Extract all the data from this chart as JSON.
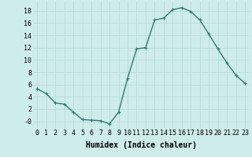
{
  "x": [
    0,
    1,
    2,
    3,
    4,
    5,
    6,
    7,
    8,
    9,
    10,
    11,
    12,
    13,
    14,
    15,
    16,
    17,
    18,
    19,
    20,
    21,
    22,
    23
  ],
  "y": [
    5.3,
    4.5,
    3.0,
    2.8,
    1.5,
    0.3,
    0.2,
    0.1,
    -0.4,
    1.5,
    7.0,
    11.8,
    12.0,
    16.5,
    16.8,
    18.2,
    18.5,
    17.9,
    16.5,
    14.2,
    11.8,
    9.5,
    7.5,
    6.2
  ],
  "line_color": "#2e7b6f",
  "marker": "+",
  "markersize": 3,
  "linewidth": 1.0,
  "background_color": "#ceecea",
  "grid_color": "#b2d8d4",
  "xlabel": "Humidex (Indice chaleur)",
  "xlabel_fontsize": 7,
  "tick_fontsize": 6,
  "ylim": [
    -1.2,
    19.5
  ],
  "xlim": [
    -0.5,
    23.5
  ],
  "yticks": [
    0,
    2,
    4,
    6,
    8,
    10,
    12,
    14,
    16,
    18
  ],
  "ytick_labels": [
    "-0",
    "2",
    "4",
    "6",
    "8",
    "10",
    "12",
    "14",
    "16",
    "18"
  ],
  "xticks": [
    0,
    1,
    2,
    3,
    4,
    5,
    6,
    7,
    8,
    9,
    10,
    11,
    12,
    13,
    14,
    15,
    16,
    17,
    18,
    19,
    20,
    21,
    22,
    23
  ]
}
